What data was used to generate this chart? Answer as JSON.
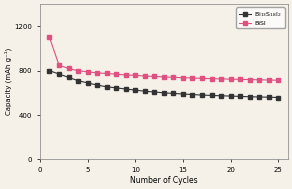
{
  "title_top_left": "BiSI",
  "title_top_right": "Bi$_{13}$S$_{18}$I$_{2}$",
  "xlabel": "Number of Cycles",
  "ylabel": "Capacity (mAh g⁻¹)",
  "xlim": [
    0,
    26
  ],
  "ylim": [
    0,
    1400
  ],
  "yticks": [
    0,
    400,
    800,
    1200
  ],
  "xticks": [
    0,
    5,
    10,
    15,
    20,
    25
  ],
  "bi13_x": [
    1,
    2,
    3,
    4,
    5,
    6,
    7,
    8,
    9,
    10,
    11,
    12,
    13,
    14,
    15,
    16,
    17,
    18,
    19,
    20,
    21,
    22,
    23,
    24,
    25
  ],
  "bi13_y": [
    800,
    770,
    740,
    710,
    690,
    670,
    655,
    645,
    635,
    625,
    615,
    608,
    600,
    595,
    590,
    585,
    580,
    577,
    574,
    571,
    568,
    565,
    563,
    561,
    558
  ],
  "bisi_x": [
    1,
    2,
    3,
    4,
    5,
    6,
    7,
    8,
    9,
    10,
    11,
    12,
    13,
    14,
    15,
    16,
    17,
    18,
    19,
    20,
    21,
    22,
    23,
    24,
    25
  ],
  "bisi_y": [
    1100,
    850,
    820,
    800,
    790,
    780,
    775,
    768,
    762,
    758,
    752,
    748,
    744,
    740,
    737,
    734,
    731,
    728,
    726,
    724,
    722,
    720,
    718,
    716,
    714
  ],
  "bi13_color": "#333333",
  "bisi_color": "#e05080",
  "bg_color": "#f5f0e8",
  "legend_bi13": "Bi$_{13}$S$_{18}$I$_{2}$",
  "legend_bisi": "BiSI"
}
